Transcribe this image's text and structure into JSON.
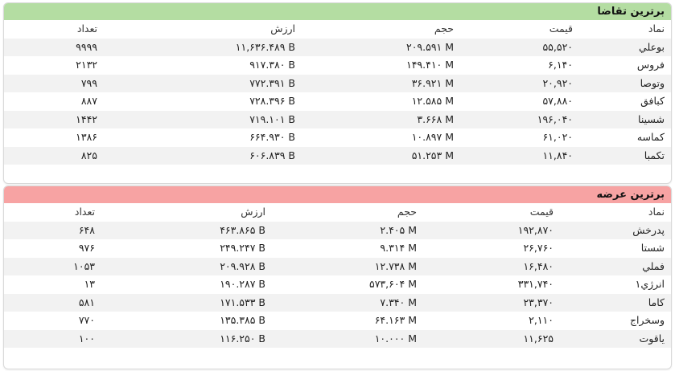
{
  "demand": {
    "title": "برترین تقاضا",
    "headers": {
      "name": "نماد",
      "price": "قیمت",
      "volume": "حجم",
      "value": "ارزش",
      "count": "تعداد"
    },
    "rows": [
      {
        "name": "بوعلي",
        "price": "۵۵,۵۲۰",
        "volume": "۲۰۹.۵۹۱ M",
        "value": "۱۱,۶۳۶.۴۸۹ B",
        "count": "۹۹۹۹"
      },
      {
        "name": "فروس",
        "price": "۶,۱۴۰",
        "volume": "۱۴۹.۴۱۰ M",
        "value": "۹۱۷.۳۸۰ B",
        "count": "۲۱۳۲"
      },
      {
        "name": "وتوصا",
        "price": "۲۰,۹۲۰",
        "volume": "۳۶.۹۲۱ M",
        "value": "۷۷۲.۳۹۱ B",
        "count": "۷۹۹"
      },
      {
        "name": "کبافق",
        "price": "۵۷,۸۸۰",
        "volume": "۱۲.۵۸۵ M",
        "value": "۷۲۸.۳۹۶ B",
        "count": "۸۸۷"
      },
      {
        "name": "شسینا",
        "price": "۱۹۶,۰۴۰",
        "volume": "۳.۶۶۸ M",
        "value": "۷۱۹.۱۰۱ B",
        "count": "۱۴۴۲"
      },
      {
        "name": "کماسه",
        "price": "۶۱,۰۲۰",
        "volume": "۱۰.۸۹۷ M",
        "value": "۶۶۴.۹۳۰ B",
        "count": "۱۳۸۶"
      },
      {
        "name": "تکمبا",
        "price": "۱۱,۸۴۰",
        "volume": "۵۱.۲۵۳ M",
        "value": "۶۰۶.۸۳۹ B",
        "count": "۸۲۵"
      }
    ]
  },
  "supply": {
    "title": "برترین عرضه",
    "headers": {
      "name": "نماد",
      "price": "قیمت",
      "volume": "حجم",
      "value": "ارزش",
      "count": "تعداد"
    },
    "rows": [
      {
        "name": "پدرخش",
        "price": "۱۹۲,۸۷۰",
        "volume": "۲.۴۰۵ M",
        "value": "۴۶۳.۸۶۵ B",
        "count": "۶۴۸"
      },
      {
        "name": "شستا",
        "price": "۲۶,۷۶۰",
        "volume": "۹.۳۱۴ M",
        "value": "۲۴۹.۲۴۷ B",
        "count": "۹۷۶"
      },
      {
        "name": "فملي",
        "price": "۱۶,۴۸۰",
        "volume": "۱۲.۷۳۸ M",
        "value": "۲۰۹.۹۲۸ B",
        "count": "۱۰۵۳"
      },
      {
        "name": "انرژي۱",
        "price": "۳۳۱,۷۴۰",
        "volume": "۵۷۳,۶۰۴ M",
        "value": "۱۹۰.۲۸۷ B",
        "count": "۱۳"
      },
      {
        "name": "کاما",
        "price": "۲۳,۳۷۰",
        "volume": "۷.۳۴۰ M",
        "value": "۱۷۱.۵۳۳ B",
        "count": "۵۸۱"
      },
      {
        "name": "وسخراج",
        "price": "۲,۱۱۰",
        "volume": "۶۴.۱۶۳ M",
        "value": "۱۳۵.۳۸۵ B",
        "count": "۷۷۰"
      },
      {
        "name": "یاقوت",
        "price": "۱۱,۶۲۵",
        "volume": "۱۰.۰۰۰ M",
        "value": "۱۱۶.۲۵۰ B",
        "count": "۱۰۰"
      }
    ]
  }
}
